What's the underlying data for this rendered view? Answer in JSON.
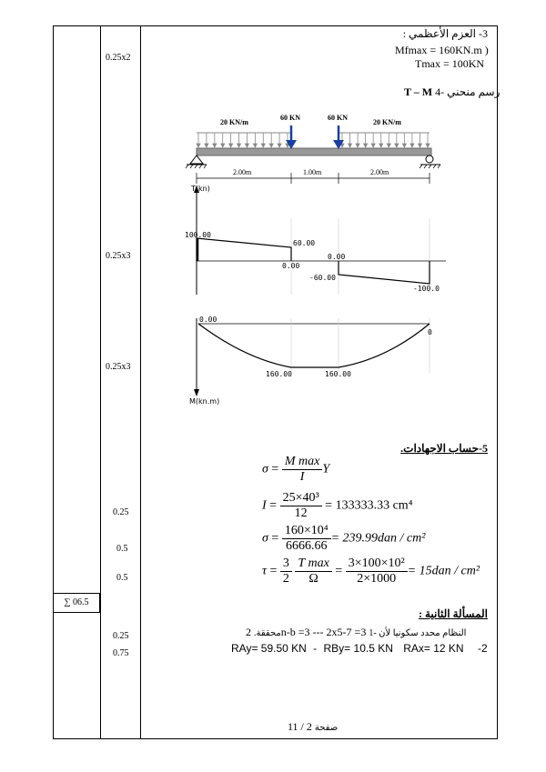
{
  "margin": {
    "scores": [
      "0.25x2",
      "0.25x3",
      "0.25x3",
      "0.25",
      "0.5",
      "0.5",
      "0.25",
      "0.75"
    ],
    "total": "∑ 06.5"
  },
  "section3": {
    "heading": "3- العزم الأعظمي :",
    "line1": "Mfmax = 160KN.m )",
    "line2": "Tmax = 100KN"
  },
  "section4": {
    "heading": "4- رسم منحني",
    "heading_latin": "T – M"
  },
  "beam": {
    "load_left": "20 KN/m",
    "load_right": "20 KN/m",
    "point_load_1": "60 KN",
    "point_load_2": "60 KN",
    "span_1": "2.00m",
    "span_2": "1.00m",
    "span_3": "2.00m"
  },
  "shear": {
    "axis_label": "T(kn)",
    "values": [
      "100.00",
      "60.00",
      "0.00",
      "0.00",
      "-60.00",
      "-100.0"
    ]
  },
  "moment": {
    "axis_label": "M(kn.m)",
    "values": [
      "0.00",
      "160.00",
      "160.00",
      "0"
    ]
  },
  "section5": {
    "heading": "5-حساب الاجهادات."
  },
  "equations": {
    "sigma": "σ",
    "eq1_num": "M max",
    "eq1_den": "I",
    "eq1_tail": "Y",
    "I": "I",
    "eq2_num": "25×40³",
    "eq2_den": "12",
    "eq2_res": "= 133333.33 cm⁴",
    "eq3_num": "160×10⁴",
    "eq3_den": "6666.66",
    "eq3_res": "= 239.99dan / cm²",
    "tau": "τ",
    "eq4_c_num": "3",
    "eq4_c_den": "2",
    "eq4_num": "T max",
    "eq4_den": "Ω",
    "eq4_num2": "3×100×10²",
    "eq4_den2": "2×1000",
    "eq4_res": "= 15dan / cm²"
  },
  "problem2": {
    "heading": "المسألة الثانية :",
    "line1_ar": "1- النظام محدد سكونيا لأن",
    "line1_eq": "2n-b =3 --- 2x5-7 =3",
    "line1_end": "محققة.",
    "line2": "R_Ay= 59.50 KN - R_By= 10.5 KN R_Ax= 12 KN -2",
    "ray": "RAy= 59.50  KN",
    "sep": "-",
    "rby": "RBy= 10.5  KN",
    "rax": "RAx=  12  KN",
    "num": "-2"
  },
  "footer": {
    "page": "11 / 2",
    "label": "صفحة"
  }
}
